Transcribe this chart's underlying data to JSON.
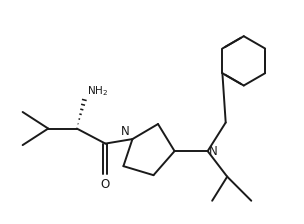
{
  "bg_color": "#ffffff",
  "line_color": "#1a1a1a",
  "line_width": 1.4,
  "font_size": 7.5,
  "figsize": [
    3.04,
    2.24
  ],
  "dpi": 100,
  "xlim": [
    0,
    10
  ],
  "ylim": [
    0,
    7.4
  ]
}
